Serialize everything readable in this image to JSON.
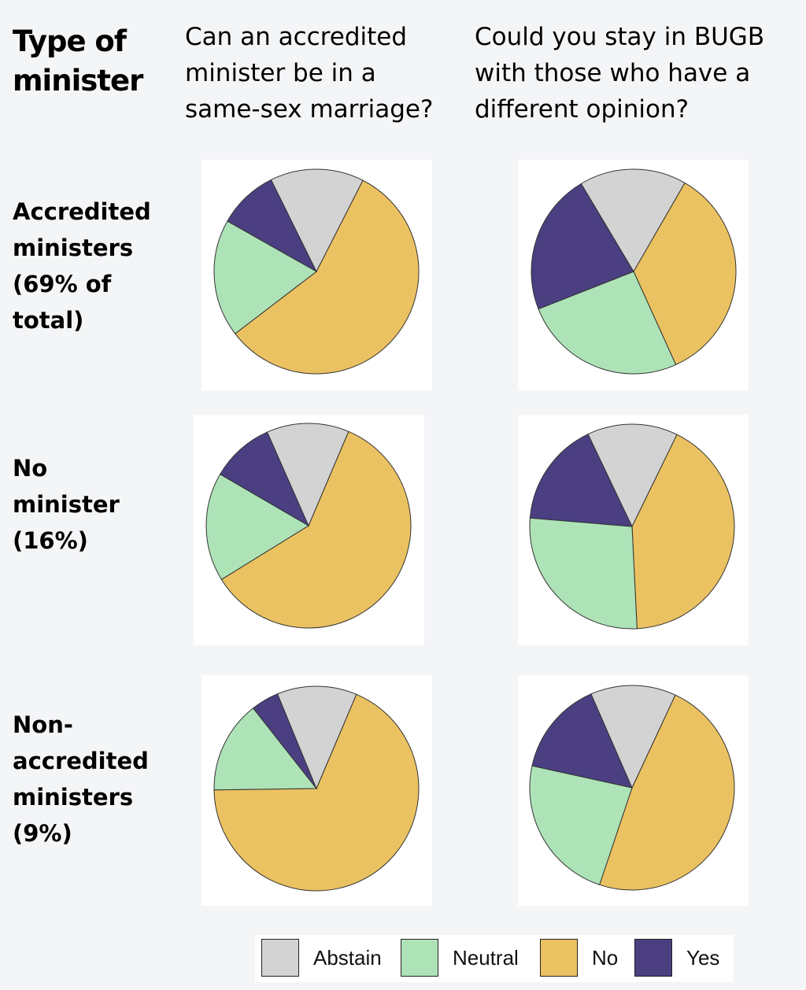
{
  "header": {
    "type_label_lines": [
      "Type of",
      "minister"
    ],
    "question1_lines": [
      "Can an accredited",
      "minister be in a",
      "same-sex marriage?"
    ],
    "question2_lines": [
      "Could you stay in BUGB",
      "with those who have a",
      "different opinion?"
    ]
  },
  "rows": [
    {
      "label_lines": [
        "Accredited",
        "ministers",
        "(69% of",
        "total)"
      ]
    },
    {
      "label_lines": [
        "No",
        "minister",
        "(16%)"
      ]
    },
    {
      "label_lines": [
        "Non-",
        "accredited",
        "ministers",
        "(9%)"
      ]
    }
  ],
  "legend": [
    {
      "label": "Abstain",
      "color": "#d3d3d3"
    },
    {
      "label": "Neutral",
      "color": "#aee3b8"
    },
    {
      "label": "No",
      "color": "#ebc262"
    },
    {
      "label": "Yes",
      "color": "#4b3f82"
    }
  ],
  "chart_data": [
    {
      "type": "pie",
      "title": "Accredited ministers — Can an accredited minister be in a same-sex marriage?",
      "categories": [
        "No",
        "Neutral",
        "Yes",
        "Abstain"
      ],
      "values": [
        57.1,
        18.6,
        9.5,
        14.8
      ],
      "start_angle_deg": 27
    },
    {
      "type": "pie",
      "title": "Accredited ministers — Could you stay in BUGB with those who have a different opinion?",
      "categories": [
        "No",
        "Neutral",
        "Yes",
        "Abstain"
      ],
      "values": [
        34.9,
        25.8,
        22.4,
        16.9
      ],
      "start_angle_deg": 30
    },
    {
      "type": "pie",
      "title": "No minister — Can an accredited minister be in a same-sex marriage?",
      "categories": [
        "No",
        "Neutral",
        "Yes",
        "Abstain"
      ],
      "values": [
        59.8,
        17.2,
        10.0,
        13.0
      ],
      "start_angle_deg": 23
    },
    {
      "type": "pie",
      "title": "No minister — Could you stay in BUGB with those who have a different opinion?",
      "categories": [
        "No",
        "Neutral",
        "Yes",
        "Abstain"
      ],
      "values": [
        42.0,
        27.1,
        16.6,
        14.3
      ],
      "start_angle_deg": 26
    },
    {
      "type": "pie",
      "title": "Non-accredited ministers — Can an accredited minister be in a same-sex marriage?",
      "categories": [
        "No",
        "Neutral",
        "Yes",
        "Abstain"
      ],
      "values": [
        68.4,
        14.6,
        4.4,
        12.6
      ],
      "start_angle_deg": 23
    },
    {
      "type": "pie",
      "title": "Non-accredited ministers — Could you stay in BUGB with those who have a different opinion?",
      "categories": [
        "No",
        "Neutral",
        "Yes",
        "Abstain"
      ],
      "values": [
        48.2,
        23.3,
        15.0,
        13.5
      ],
      "start_angle_deg": 25
    }
  ]
}
